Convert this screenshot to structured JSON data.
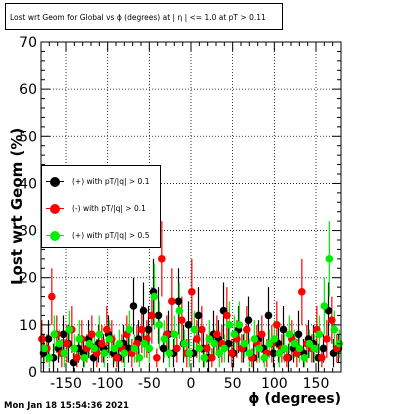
{
  "chart_data": {
    "type": "scatter",
    "title": "Lost wrt Geom for Global vs ϕ (degrees) at | η | <= 1.0 at pT > 0.11",
    "xlabel": "ϕ (degrees)",
    "ylabel": "Lost wrt Geom (%)",
    "xlim": [
      -180,
      180
    ],
    "ylim": [
      0,
      70
    ],
    "x_ticks": [
      -150,
      -100,
      -50,
      0,
      50,
      100,
      150
    ],
    "y_ticks": [
      0,
      10,
      20,
      30,
      40,
      50,
      60,
      70
    ],
    "grid": true,
    "legend_position": "middle-left",
    "timestamp": "Mon Jan 18 15:54:36 2021",
    "series": [
      {
        "name": "(+) with pT/|q| > 0.1",
        "color": "#000000",
        "x": [
          -177,
          -171,
          -165,
          -159,
          -153,
          -147,
          -141,
          -135,
          -129,
          -123,
          -117,
          -111,
          -105,
          -99,
          -93,
          -87,
          -81,
          -75,
          -69,
          -63,
          -57,
          -51,
          -45,
          -39,
          -33,
          -27,
          -21,
          -15,
          -9,
          -3,
          3,
          9,
          15,
          21,
          27,
          33,
          39,
          45,
          51,
          57,
          63,
          69,
          75,
          81,
          87,
          93,
          99,
          105,
          111,
          117,
          123,
          129,
          135,
          141,
          147,
          153,
          159,
          165,
          171,
          177
        ],
        "y": [
          4,
          7,
          3,
          5,
          8,
          6,
          2,
          5,
          4,
          7,
          3,
          6,
          5,
          8,
          4,
          3,
          6,
          5,
          14,
          7,
          13,
          9,
          17,
          12,
          5,
          8,
          4,
          15,
          6,
          10,
          4,
          12,
          5,
          3,
          8,
          7,
          13,
          6,
          4,
          9,
          5,
          11,
          3,
          7,
          5,
          12,
          4,
          6,
          9,
          3,
          5,
          8,
          4,
          7,
          6,
          3,
          5,
          13,
          4,
          5
        ],
        "err": [
          4,
          4,
          3,
          3,
          4,
          4,
          2,
          3,
          3,
          4,
          3,
          4,
          3,
          4,
          3,
          3,
          4,
          3,
          6,
          4,
          6,
          5,
          7,
          6,
          3,
          5,
          3,
          7,
          4,
          5,
          3,
          6,
          4,
          3,
          5,
          4,
          6,
          4,
          3,
          5,
          3,
          5,
          3,
          4,
          3,
          6,
          3,
          4,
          5,
          3,
          3,
          5,
          3,
          4,
          4,
          3,
          3,
          6,
          3,
          3
        ]
      },
      {
        "name": "(-) with pT/|q| > 0.1",
        "color": "#ff0000",
        "x": [
          -179,
          -173,
          -167,
          -161,
          -155,
          -149,
          -143,
          -137,
          -131,
          -125,
          -119,
          -113,
          -107,
          -101,
          -95,
          -89,
          -83,
          -77,
          -71,
          -65,
          -59,
          -53,
          -47,
          -41,
          -35,
          -29,
          -23,
          -17,
          -11,
          -5,
          1,
          7,
          13,
          19,
          25,
          31,
          37,
          43,
          49,
          55,
          61,
          67,
          73,
          79,
          85,
          91,
          97,
          103,
          109,
          115,
          121,
          127,
          133,
          139,
          145,
          151,
          157,
          163,
          169,
          175
        ],
        "y": [
          7,
          5,
          16,
          8,
          4,
          6,
          9,
          3,
          7,
          5,
          8,
          4,
          6,
          9,
          7,
          3,
          5,
          8,
          4,
          6,
          9,
          7,
          12,
          3,
          24,
          8,
          15,
          5,
          11,
          4,
          17,
          7,
          9,
          5,
          3,
          8,
          6,
          12,
          4,
          7,
          5,
          9,
          3,
          6,
          8,
          4,
          6,
          10,
          5,
          3,
          7,
          4,
          17,
          6,
          5,
          9,
          3,
          7,
          11,
          5
        ],
        "err": [
          4,
          3,
          6,
          4,
          3,
          4,
          5,
          2,
          4,
          3,
          4,
          3,
          4,
          5,
          4,
          2,
          3,
          4,
          3,
          4,
          5,
          4,
          6,
          2,
          8,
          4,
          7,
          3,
          5,
          3,
          7,
          4,
          5,
          3,
          2,
          4,
          4,
          6,
          3,
          4,
          3,
          5,
          2,
          4,
          4,
          3,
          4,
          5,
          3,
          2,
          4,
          3,
          7,
          4,
          3,
          5,
          2,
          4,
          5,
          3
        ]
      },
      {
        "name": "(+) with pT/|q| > 0.5",
        "color": "#00ee00",
        "x": [
          -176,
          -170,
          -164,
          -158,
          -152,
          -146,
          -140,
          -134,
          -128,
          -122,
          -116,
          -110,
          -104,
          -98,
          -92,
          -86,
          -80,
          -74,
          -68,
          -62,
          -56,
          -50,
          -44,
          -38,
          -32,
          -26,
          -20,
          -14,
          -8,
          -2,
          4,
          10,
          16,
          22,
          28,
          34,
          40,
          46,
          52,
          58,
          64,
          70,
          76,
          82,
          88,
          94,
          100,
          106,
          112,
          118,
          124,
          130,
          136,
          142,
          148,
          154,
          160,
          166,
          172,
          178
        ],
        "y": [
          5,
          3,
          8,
          6,
          4,
          9,
          5,
          7,
          3,
          6,
          5,
          8,
          4,
          7,
          5,
          6,
          4,
          9,
          5,
          3,
          6,
          5,
          16,
          10,
          7,
          4,
          8,
          13,
          6,
          4,
          9,
          5,
          3,
          7,
          6,
          4,
          5,
          10,
          8,
          10,
          6,
          4,
          7,
          5,
          3,
          6,
          7,
          4,
          5,
          8,
          6,
          5,
          3,
          6,
          5,
          8,
          14,
          24,
          9,
          6
        ],
        "err": [
          3,
          2,
          4,
          3,
          3,
          4,
          3,
          4,
          2,
          3,
          3,
          4,
          3,
          4,
          3,
          3,
          3,
          4,
          3,
          2,
          3,
          3,
          7,
          5,
          4,
          3,
          4,
          6,
          3,
          3,
          4,
          3,
          2,
          4,
          3,
          3,
          3,
          5,
          4,
          5,
          3,
          3,
          4,
          3,
          2,
          3,
          4,
          3,
          3,
          4,
          3,
          3,
          2,
          3,
          3,
          4,
          6,
          8,
          4,
          3
        ]
      }
    ]
  }
}
